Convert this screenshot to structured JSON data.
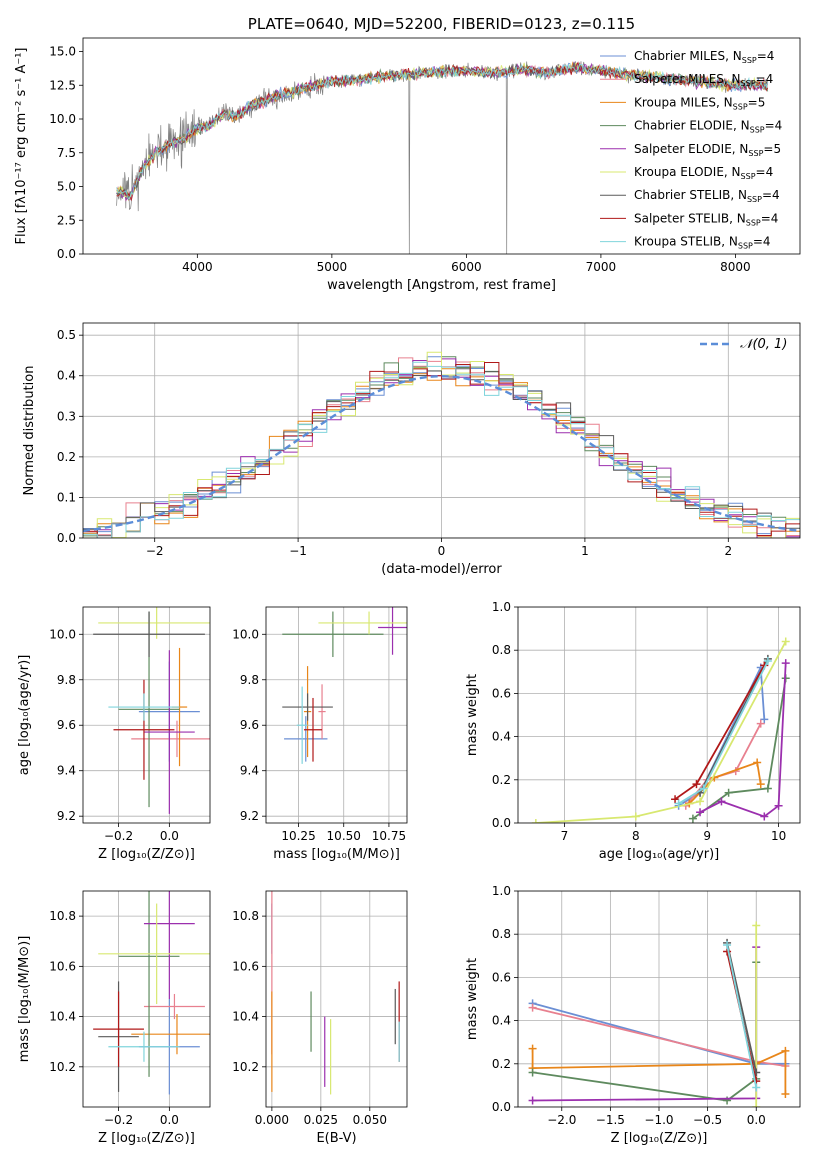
{
  "colors": [
    "#6b8fd4",
    "#e8808f",
    "#e8861a",
    "#5e8a5e",
    "#9b2fae",
    "#d8e870",
    "#5a5a5a",
    "#b01818",
    "#80d4dc"
  ],
  "chart_data": [
    {
      "id": "spectrum",
      "type": "line",
      "title": "PLATE=0640, MJD=52200, FIBERID=0123, z=0.115",
      "xlabel": "wavelength [Angstrom, rest frame]",
      "ylabel": "Flux [fλ10⁻¹⁷ erg cm⁻² s⁻¹ A⁻¹]",
      "xlim": [
        3150,
        8480
      ],
      "ylim": [
        0,
        16
      ],
      "xticks": [
        "4000",
        "5000",
        "6000",
        "7000",
        "8000"
      ],
      "yticks": [
        "0.0",
        "2.5",
        "5.0",
        "7.5",
        "10.0",
        "12.5",
        "15.0"
      ],
      "data_wavelength": [
        3400,
        3500,
        3600,
        3700,
        3800,
        3900,
        4000,
        4100,
        4200,
        4300,
        4400,
        4500,
        4600,
        4700,
        4800,
        4900,
        5000,
        5200,
        5400,
        5600,
        5800,
        6000,
        6200,
        6400,
        6600,
        6800,
        7000,
        7200,
        7400,
        7600,
        7800,
        8000,
        8240
      ],
      "data_flux": [
        4.8,
        4.2,
        6.5,
        7.5,
        8.2,
        8.6,
        9.3,
        9.6,
        10.4,
        10.2,
        11.0,
        11.3,
        11.8,
        12.0,
        12.3,
        12.5,
        12.8,
        12.9,
        13.2,
        13.3,
        13.5,
        13.6,
        13.4,
        13.7,
        13.4,
        13.8,
        13.6,
        13.3,
        13.1,
        12.9,
        12.7,
        12.5,
        12.5
      ],
      "series": [
        {
          "name": "Chabrier MILES",
          "nssp": "4"
        },
        {
          "name": "Salpeter MILES",
          "nssp": "4"
        },
        {
          "name": "Kroupa MILES",
          "nssp": "5"
        },
        {
          "name": "Chabrier ELODIE",
          "nssp": "4"
        },
        {
          "name": "Salpeter ELODIE",
          "nssp": "5"
        },
        {
          "name": "Kroupa ELODIE",
          "nssp": "4"
        },
        {
          "name": "Chabrier STELIB",
          "nssp": "4"
        },
        {
          "name": "Salpeter STELIB",
          "nssp": "4"
        },
        {
          "name": "Kroupa STELIB",
          "nssp": "4"
        }
      ]
    },
    {
      "id": "residuals",
      "type": "bar",
      "xlabel": "(data-model)/error",
      "ylabel": "Normed distribution",
      "xlim": [
        -2.5,
        2.5
      ],
      "ylim": [
        0,
        0.53
      ],
      "xticks": [
        "−2",
        "−1",
        "0",
        "1",
        "2"
      ],
      "yticks": [
        "0.0",
        "0.1",
        "0.2",
        "0.3",
        "0.4",
        "0.5"
      ],
      "legend": "𝒩(0, 1)",
      "bin_width": 0.1,
      "bin_start": -2.5
    },
    {
      "id": "age-vs-Z",
      "type": "scatter",
      "xlabel": "Z [log₁₀(Z/Z⊙)]",
      "ylabel": "age  [log₁₀(age/yr)]",
      "xlim": [
        -0.34,
        0.16
      ],
      "ylim": [
        9.17,
        10.12
      ],
      "xticks": [
        "−0.2",
        "0.0"
      ],
      "yticks": [
        "9.2",
        "9.4",
        "9.6",
        "9.8",
        "10.0"
      ],
      "points": [
        {
          "x": 0.0,
          "y": 9.66,
          "xerr": 0.12,
          "yerr": 0.22
        },
        {
          "x": 0.03,
          "y": 9.54,
          "xerr": 0.18,
          "yerr": 0.08
        },
        {
          "x": 0.04,
          "y": 9.68,
          "xerr": 0.03,
          "yerr": 0.26
        },
        {
          "x": -0.08,
          "y": 9.67,
          "xerr": 0.12,
          "yerr": 0.43
        },
        {
          "x": 0.0,
          "y": 9.57,
          "xerr": 0.1,
          "yerr": 0.36
        },
        {
          "x": -0.05,
          "y": 10.05,
          "xerr": 0.23,
          "yerr": 0.07
        },
        {
          "x": -0.08,
          "y": 10.0,
          "xerr": 0.22,
          "yerr": 0.1
        },
        {
          "x": -0.1,
          "y": 9.58,
          "xerr": 0.12,
          "yerr": 0.22
        },
        {
          "x": -0.1,
          "y": 9.68,
          "xerr": 0.14,
          "yerr": 0.06
        }
      ]
    },
    {
      "id": "age-vs-mass",
      "type": "scatter",
      "xlabel": "mass [log₁₀(M/M⊙)]",
      "ylabel": "",
      "xlim": [
        10.07,
        10.85
      ],
      "ylim": [
        9.17,
        10.12
      ],
      "xticks": [
        "10.25",
        "10.50",
        "10.75"
      ],
      "yticks": [
        "9.2",
        "9.4",
        "9.6",
        "9.8",
        "10.0"
      ],
      "points": [
        {
          "x": 10.29,
          "y": 9.54,
          "xerr": 0.12,
          "yerr": 0.1
        },
        {
          "x": 10.38,
          "y": 9.66,
          "xerr": 0.02,
          "yerr": 0.12
        },
        {
          "x": 10.3,
          "y": 9.66,
          "xerr": 0.02,
          "yerr": 0.2
        },
        {
          "x": 10.44,
          "y": 10.0,
          "xerr": 0.28,
          "yerr": 0.1
        },
        {
          "x": 10.77,
          "y": 10.03,
          "xerr": 0.08,
          "yerr": 0.12
        },
        {
          "x": 10.64,
          "y": 10.05,
          "xerr": 0.28,
          "yerr": 0.05
        },
        {
          "x": 10.3,
          "y": 9.68,
          "xerr": 0.14,
          "yerr": 0.06
        },
        {
          "x": 10.33,
          "y": 9.58,
          "xerr": 0.05,
          "yerr": 0.14
        },
        {
          "x": 10.27,
          "y": 9.6,
          "xerr": 0.03,
          "yerr": 0.17
        }
      ]
    },
    {
      "id": "massweight-vs-age",
      "type": "line",
      "xlabel": "age  [log₁₀(age/yr)]",
      "ylabel": "mass weight",
      "xlim": [
        6.35,
        10.3
      ],
      "ylim": [
        0,
        1
      ],
      "xticks": [
        "7",
        "8",
        "9",
        "10"
      ],
      "yticks": [
        "0.0",
        "0.2",
        "0.4",
        "0.6",
        "0.8",
        "1.0"
      ],
      "series": [
        {
          "x": [
            8.6,
            8.9,
            9.75,
            9.8
          ],
          "y": [
            0.08,
            0.14,
            0.72,
            0.48
          ]
        },
        {
          "x": [
            8.7,
            9.0,
            9.4,
            9.75
          ],
          "y": [
            0.08,
            0.2,
            0.24,
            0.46
          ]
        },
        {
          "x": [
            8.75,
            9.1,
            9.7,
            9.75
          ],
          "y": [
            0.09,
            0.21,
            0.28,
            0.18
          ]
        },
        {
          "x": [
            8.8,
            9.3,
            9.85,
            10.1
          ],
          "y": [
            0.02,
            0.14,
            0.16,
            0.67
          ]
        },
        {
          "x": [
            8.9,
            9.2,
            9.8,
            10.0,
            10.1
          ],
          "y": [
            0.05,
            0.1,
            0.03,
            0.08,
            0.74
          ]
        },
        {
          "x": [
            6.6,
            8.0,
            8.9,
            10.1
          ],
          "y": [
            0.0,
            0.03,
            0.1,
            0.84
          ]
        },
        {
          "x": [
            8.9,
            9.85
          ],
          "y": [
            0.14,
            0.76
          ]
        },
        {
          "x": [
            8.55,
            8.85,
            9.8
          ],
          "y": [
            0.11,
            0.18,
            0.73
          ]
        },
        {
          "x": [
            8.6,
            8.95,
            9.85
          ],
          "y": [
            0.09,
            0.16,
            0.75
          ]
        }
      ]
    },
    {
      "id": "mass-vs-Z",
      "type": "scatter",
      "xlabel": "Z [log₁₀(Z/Z⊙)]",
      "ylabel": "mass [log₁₀(M/M⊙)]",
      "xlim": [
        -0.34,
        0.16
      ],
      "ylim": [
        10.04,
        10.9
      ],
      "xticks": [
        "−0.2",
        "0.0"
      ],
      "yticks": [
        "10.2",
        "10.4",
        "10.6",
        "10.8"
      ],
      "points": [
        {
          "x": 0.0,
          "y": 10.28,
          "xerr": 0.12,
          "yerr": 0.19
        },
        {
          "x": 0.02,
          "y": 10.44,
          "xerr": 0.12,
          "yerr": 0.05
        },
        {
          "x": 0.03,
          "y": 10.33,
          "xerr": 0.18,
          "yerr": 0.08
        },
        {
          "x": -0.08,
          "y": 10.64,
          "xerr": 0.12,
          "yerr": 0.48
        },
        {
          "x": 0.0,
          "y": 10.77,
          "xerr": 0.1,
          "yerr": 0.3
        },
        {
          "x": -0.05,
          "y": 10.65,
          "xerr": 0.23,
          "yerr": 0.2
        },
        {
          "x": -0.2,
          "y": 10.32,
          "xerr": 0.08,
          "yerr": 0.22
        },
        {
          "x": -0.2,
          "y": 10.35,
          "xerr": 0.1,
          "yerr": 0.15
        },
        {
          "x": -0.1,
          "y": 10.28,
          "xerr": 0.14,
          "yerr": 0.06
        }
      ]
    },
    {
      "id": "mass-vs-ebv",
      "type": "scatter",
      "xlabel": "E(B-V)",
      "ylabel": "",
      "xlim": [
        -0.003,
        0.069
      ],
      "ylim": [
        10.04,
        10.9
      ],
      "xticks": [
        "0.000",
        "0.025",
        "0.050"
      ],
      "yticks": [
        "10.2",
        "10.4",
        "10.6",
        "10.8"
      ],
      "points": [
        {
          "x": 0.0,
          "y": 10.75,
          "yerr": 0.1
        },
        {
          "x": 0.0,
          "y": 10.6,
          "yerr": 0.35
        },
        {
          "x": 0.0,
          "y": 10.3,
          "yerr": 0.2
        },
        {
          "x": 0.02,
          "y": 10.38,
          "yerr": 0.12
        },
        {
          "x": 0.027,
          "y": 10.26,
          "yerr": 0.14
        },
        {
          "x": 0.03,
          "y": 10.24,
          "yerr": 0.15
        },
        {
          "x": 0.063,
          "y": 10.4,
          "yerr": 0.11
        },
        {
          "x": 0.065,
          "y": 10.38,
          "yerr": 0.16
        },
        {
          "x": 0.065,
          "y": 10.3,
          "yerr": 0.08
        }
      ]
    },
    {
      "id": "massweight-vs-Z",
      "type": "line",
      "xlabel": "Z [log₁₀(Z/Z⊙)]",
      "ylabel": "mass weight",
      "xlim": [
        -2.45,
        0.45
      ],
      "ylim": [
        0,
        1
      ],
      "xticks": [
        "−2.0",
        "−1.5",
        "−1.0",
        "−0.5",
        "0.0"
      ],
      "yticks": [
        "0.0",
        "0.2",
        "0.4",
        "0.6",
        "0.8",
        "1.0"
      ],
      "series": [
        {
          "x": [
            -2.3,
            0.0,
            0.3
          ],
          "y": [
            0.48,
            0.2,
            0.2
          ]
        },
        {
          "x": [
            -2.3,
            0.0,
            0.3
          ],
          "y": [
            0.46,
            0.21,
            0.19
          ]
        },
        {
          "x": [
            -2.3,
            -2.3,
            0.0,
            0.3,
            0.3
          ],
          "y": [
            0.27,
            0.18,
            0.2,
            0.26,
            0.06
          ]
        },
        {
          "x": [
            -2.3,
            -0.3,
            0.0,
            0.0
          ],
          "y": [
            0.16,
            0.03,
            0.13,
            0.67
          ]
        },
        {
          "x": [
            -2.3,
            0.0,
            0.0
          ],
          "y": [
            0.03,
            0.04,
            0.74
          ]
        },
        {
          "x": [
            0.0,
            0.0
          ],
          "y": [
            0.0,
            0.84
          ]
        },
        {
          "x": [
            -0.3,
            0.0
          ],
          "y": [
            0.76,
            0.16
          ]
        },
        {
          "x": [
            -0.3,
            0.0
          ],
          "y": [
            0.72,
            0.12
          ]
        },
        {
          "x": [
            -0.3,
            0.0
          ],
          "y": [
            0.75,
            0.09
          ]
        }
      ]
    }
  ]
}
